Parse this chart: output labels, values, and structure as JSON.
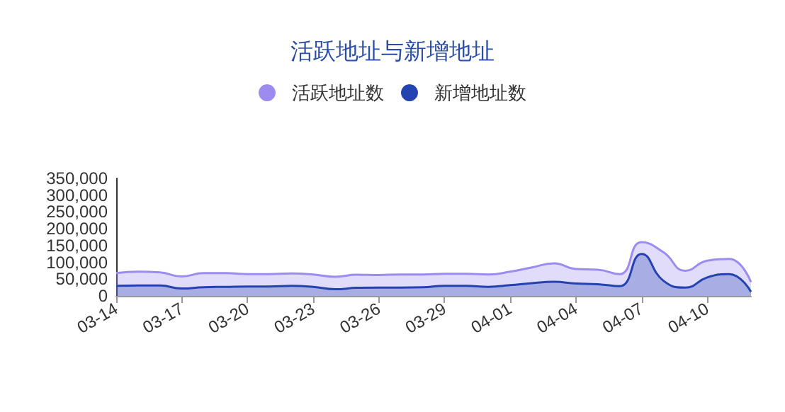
{
  "chart_data": {
    "type": "area",
    "title": "活跃地址与新增地址",
    "categories": [
      "03-14",
      null,
      null,
      "03-17",
      null,
      null,
      "03-20",
      null,
      null,
      "03-23",
      null,
      null,
      "03-26",
      null,
      null,
      "03-29",
      null,
      null,
      "04-01",
      null,
      null,
      "04-04",
      null,
      null,
      "04-07",
      null,
      null,
      "04-10",
      null,
      null
    ],
    "series": [
      {
        "name": "活跃地址数",
        "color": "#9d8bef",
        "values": [
          68000,
          72000,
          70000,
          58000,
          68000,
          68000,
          65000,
          65000,
          67000,
          64000,
          57000,
          63000,
          62000,
          64000,
          64000,
          66000,
          66000,
          64000,
          72000,
          85000,
          97000,
          80000,
          78000,
          65000,
          160000,
          130000,
          75000,
          105000,
          110000,
          41000
        ]
      },
      {
        "name": "新增地址数",
        "color": "#2443b0",
        "values": [
          30000,
          31000,
          31000,
          22000,
          26000,
          27000,
          28000,
          28000,
          30000,
          27000,
          20000,
          24000,
          25000,
          25000,
          26000,
          30000,
          30000,
          27000,
          32000,
          38000,
          42000,
          37000,
          35000,
          29000,
          125000,
          45000,
          25000,
          55000,
          65000,
          12000
        ]
      }
    ],
    "ylim": [
      0,
      350000
    ],
    "yticks": [
      0,
      {
        "value": 50000,
        "label": "50,000"
      },
      {
        "value": 100000,
        "label": "100,000"
      },
      {
        "value": 150000,
        "label": "150,000"
      },
      {
        "value": 200000,
        "label": "200,000"
      },
      {
        "value": 250000,
        "label": "250,000"
      },
      {
        "value": 300000,
        "label": "300,000"
      },
      {
        "value": 350000,
        "label": "350,000"
      }
    ],
    "grid": false,
    "legend": "top",
    "marker": "none",
    "line_style": "solid"
  }
}
